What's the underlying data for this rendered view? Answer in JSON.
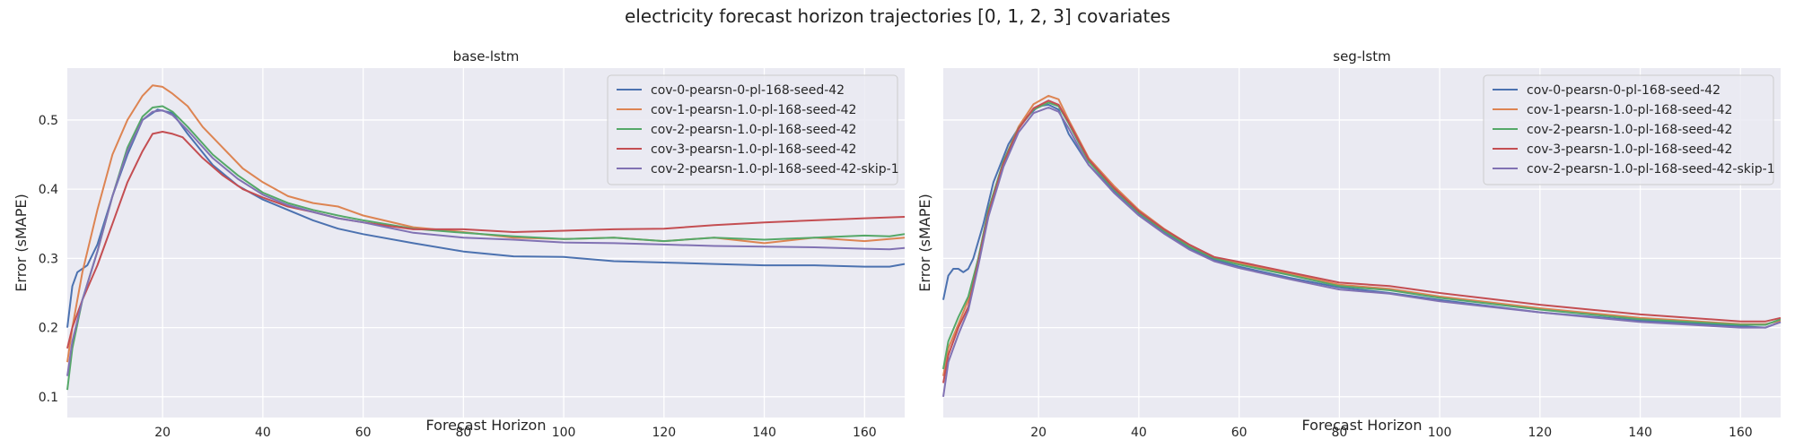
{
  "figure": {
    "title": "electricity forecast horizon trajectories [0, 1, 2, 3] covariates"
  },
  "colors": {
    "background": "#eaeaf2",
    "grid": "#ffffff",
    "series": [
      "#4c72b0",
      "#dd8452",
      "#55a868",
      "#c44e52",
      "#8172b3"
    ]
  },
  "chart_data": [
    {
      "type": "line",
      "title": "base-lstm",
      "xlabel": "Forecast Horizon",
      "ylabel": "Error (sMAPE)",
      "xlim": [
        1,
        168
      ],
      "ylim": [
        0.07,
        0.575
      ],
      "xticks": [
        20,
        40,
        60,
        80,
        100,
        120,
        140,
        160
      ],
      "yticks": [
        0.1,
        0.2,
        0.3,
        0.4,
        0.5
      ],
      "grid": true,
      "legend": "top-right",
      "series": [
        {
          "name": "cov-0-pearsn-0-pl-168-seed-42",
          "x": [
            1,
            2,
            3,
            5,
            7,
            10,
            13,
            16,
            19,
            22,
            25,
            30,
            35,
            40,
            45,
            50,
            55,
            60,
            70,
            80,
            90,
            100,
            110,
            120,
            130,
            140,
            150,
            160,
            165,
            168
          ],
          "y": [
            0.2,
            0.26,
            0.28,
            0.29,
            0.32,
            0.39,
            0.45,
            0.5,
            0.515,
            0.51,
            0.48,
            0.435,
            0.405,
            0.385,
            0.37,
            0.355,
            0.343,
            0.335,
            0.322,
            0.31,
            0.303,
            0.302,
            0.296,
            0.294,
            0.292,
            0.29,
            0.29,
            0.288,
            0.288,
            0.292
          ]
        },
        {
          "name": "cov-1-pearsn-1.0-pl-168-seed-42",
          "x": [
            1,
            2,
            4,
            7,
            10,
            13,
            16,
            18,
            20,
            22,
            25,
            28,
            32,
            36,
            40,
            45,
            50,
            55,
            60,
            70,
            80,
            90,
            100,
            110,
            120,
            130,
            140,
            150,
            160,
            168
          ],
          "y": [
            0.15,
            0.2,
            0.28,
            0.37,
            0.45,
            0.5,
            0.535,
            0.55,
            0.548,
            0.538,
            0.52,
            0.49,
            0.46,
            0.43,
            0.41,
            0.39,
            0.38,
            0.375,
            0.362,
            0.345,
            0.338,
            0.33,
            0.328,
            0.33,
            0.325,
            0.33,
            0.322,
            0.33,
            0.325,
            0.33
          ]
        },
        {
          "name": "cov-2-pearsn-1.0-pl-168-seed-42",
          "x": [
            1,
            2,
            4,
            7,
            10,
            13,
            16,
            18,
            20,
            22,
            25,
            30,
            35,
            40,
            45,
            50,
            55,
            60,
            70,
            80,
            90,
            100,
            110,
            120,
            130,
            140,
            150,
            160,
            165,
            168
          ],
          "y": [
            0.11,
            0.17,
            0.24,
            0.31,
            0.39,
            0.46,
            0.505,
            0.518,
            0.52,
            0.512,
            0.49,
            0.45,
            0.42,
            0.395,
            0.38,
            0.37,
            0.362,
            0.355,
            0.343,
            0.337,
            0.332,
            0.328,
            0.33,
            0.325,
            0.33,
            0.327,
            0.33,
            0.333,
            0.332,
            0.335
          ]
        },
        {
          "name": "cov-3-pearsn-1.0-pl-168-seed-42",
          "x": [
            1,
            2,
            4,
            7,
            10,
            13,
            16,
            18,
            20,
            22,
            24,
            28,
            32,
            36,
            40,
            45,
            50,
            55,
            60,
            70,
            80,
            90,
            100,
            110,
            120,
            130,
            140,
            150,
            160,
            168
          ],
          "y": [
            0.17,
            0.2,
            0.24,
            0.29,
            0.35,
            0.41,
            0.455,
            0.48,
            0.483,
            0.48,
            0.475,
            0.445,
            0.42,
            0.4,
            0.388,
            0.375,
            0.367,
            0.358,
            0.352,
            0.342,
            0.342,
            0.338,
            0.34,
            0.342,
            0.343,
            0.348,
            0.352,
            0.355,
            0.358,
            0.36
          ]
        },
        {
          "name": "cov-2-pearsn-1.0-pl-168-seed-42-skip-1",
          "x": [
            1,
            2,
            4,
            7,
            10,
            13,
            16,
            18,
            20,
            22,
            25,
            30,
            35,
            40,
            45,
            50,
            55,
            60,
            70,
            80,
            90,
            100,
            110,
            120,
            130,
            140,
            150,
            160,
            165,
            168
          ],
          "y": [
            0.13,
            0.18,
            0.24,
            0.31,
            0.39,
            0.455,
            0.5,
            0.512,
            0.514,
            0.507,
            0.485,
            0.445,
            0.415,
            0.392,
            0.377,
            0.367,
            0.358,
            0.352,
            0.337,
            0.33,
            0.327,
            0.323,
            0.322,
            0.32,
            0.318,
            0.317,
            0.316,
            0.314,
            0.313,
            0.315
          ]
        }
      ]
    },
    {
      "type": "line",
      "title": "seg-lstm",
      "xlabel": "Forecast Horizon",
      "ylabel": "Error (sMAPE)",
      "xlim": [
        1,
        168
      ],
      "ylim": [
        0.07,
        0.575
      ],
      "xticks": [
        20,
        40,
        60,
        80,
        100,
        120,
        140,
        160
      ],
      "yticks": [
        0.1,
        0.2,
        0.3,
        0.4,
        0.5
      ],
      "grid": true,
      "legend": "top-right",
      "series": [
        {
          "name": "cov-0-pearsn-0-pl-168-seed-42",
          "x": [
            1,
            2,
            3,
            4,
            5,
            6,
            7,
            9,
            11,
            14,
            17,
            20,
            22,
            24,
            26,
            30,
            35,
            40,
            45,
            50,
            55,
            60,
            70,
            80,
            90,
            100,
            120,
            140,
            160,
            165,
            168
          ],
          "y": [
            0.24,
            0.275,
            0.285,
            0.285,
            0.28,
            0.285,
            0.3,
            0.35,
            0.41,
            0.465,
            0.5,
            0.52,
            0.522,
            0.515,
            0.48,
            0.435,
            0.398,
            0.365,
            0.338,
            0.315,
            0.298,
            0.288,
            0.272,
            0.258,
            0.25,
            0.24,
            0.222,
            0.21,
            0.202,
            0.2,
            0.208
          ]
        },
        {
          "name": "cov-1-pearsn-1.0-pl-168-seed-42",
          "x": [
            1,
            2,
            4,
            6,
            8,
            10,
            13,
            16,
            19,
            22,
            24,
            26,
            30,
            35,
            40,
            45,
            50,
            55,
            60,
            70,
            80,
            90,
            100,
            120,
            140,
            160,
            165,
            168
          ],
          "y": [
            0.13,
            0.17,
            0.205,
            0.24,
            0.3,
            0.37,
            0.44,
            0.49,
            0.523,
            0.535,
            0.53,
            0.5,
            0.445,
            0.405,
            0.37,
            0.343,
            0.32,
            0.302,
            0.293,
            0.278,
            0.262,
            0.256,
            0.245,
            0.228,
            0.214,
            0.205,
            0.205,
            0.21
          ]
        },
        {
          "name": "cov-2-pearsn-1.0-pl-168-seed-42",
          "x": [
            1,
            2,
            4,
            6,
            8,
            10,
            13,
            16,
            19,
            22,
            24,
            26,
            30,
            35,
            40,
            45,
            50,
            55,
            60,
            70,
            80,
            90,
            100,
            120,
            140,
            160,
            165,
            168
          ],
          "y": [
            0.14,
            0.18,
            0.215,
            0.245,
            0.3,
            0.37,
            0.44,
            0.488,
            0.515,
            0.525,
            0.52,
            0.495,
            0.44,
            0.4,
            0.366,
            0.34,
            0.317,
            0.3,
            0.291,
            0.276,
            0.26,
            0.254,
            0.243,
            0.226,
            0.212,
            0.204,
            0.204,
            0.212
          ]
        },
        {
          "name": "cov-3-pearsn-1.0-pl-168-seed-42",
          "x": [
            1,
            2,
            4,
            6,
            8,
            10,
            13,
            16,
            19,
            22,
            24,
            26,
            30,
            35,
            40,
            45,
            50,
            55,
            60,
            70,
            80,
            90,
            100,
            120,
            140,
            160,
            165,
            168
          ],
          "y": [
            0.12,
            0.16,
            0.2,
            0.23,
            0.295,
            0.365,
            0.437,
            0.487,
            0.517,
            0.528,
            0.522,
            0.497,
            0.443,
            0.402,
            0.368,
            0.342,
            0.32,
            0.302,
            0.295,
            0.28,
            0.265,
            0.26,
            0.25,
            0.233,
            0.219,
            0.209,
            0.209,
            0.214
          ]
        },
        {
          "name": "cov-2-pearsn-1.0-pl-168-seed-42-skip-1",
          "x": [
            1,
            2,
            4,
            6,
            8,
            10,
            13,
            16,
            19,
            22,
            24,
            26,
            30,
            35,
            40,
            45,
            50,
            55,
            60,
            70,
            80,
            90,
            100,
            120,
            140,
            160,
            165,
            168
          ],
          "y": [
            0.1,
            0.15,
            0.19,
            0.225,
            0.29,
            0.36,
            0.432,
            0.482,
            0.51,
            0.518,
            0.512,
            0.488,
            0.435,
            0.395,
            0.362,
            0.336,
            0.313,
            0.296,
            0.286,
            0.27,
            0.255,
            0.249,
            0.238,
            0.222,
            0.208,
            0.2,
            0.2,
            0.208
          ]
        }
      ]
    }
  ]
}
